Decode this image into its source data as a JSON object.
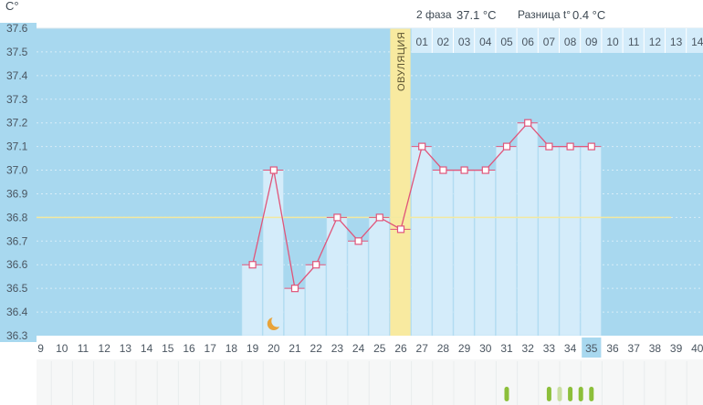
{
  "chart_data": {
    "type": "line",
    "ylabel": "C°",
    "ylim": [
      36.3,
      37.6
    ],
    "y_ticks": [
      "36.3",
      "36.4",
      "36.5",
      "36.6",
      "36.7",
      "36.8",
      "36.9",
      "37.0",
      "37.1",
      "37.2",
      "37.3",
      "37.4",
      "37.5",
      "37.6"
    ],
    "x_days": [
      "9",
      "10",
      "11",
      "12",
      "13",
      "14",
      "15",
      "16",
      "17",
      "18",
      "19",
      "20",
      "21",
      "22",
      "23",
      "24",
      "25",
      "26",
      "27",
      "28",
      "29",
      "30",
      "31",
      "32",
      "33",
      "34",
      "35",
      "36",
      "37",
      "38",
      "39",
      "40"
    ],
    "phase2_days": [
      "01",
      "02",
      "03",
      "04",
      "05",
      "06",
      "07",
      "08",
      "09",
      "10",
      "11",
      "12",
      "13",
      "14"
    ],
    "coverline": 36.8,
    "ovulation_day": 26,
    "ovulation_label": "ОВУЛЯЦИЯ",
    "current_day": 35,
    "moon_day": 20,
    "series": [
      {
        "x": [
          19,
          20,
          21,
          22,
          23,
          24,
          25,
          26,
          27,
          28,
          29,
          30,
          31,
          32,
          33,
          34,
          35
        ],
        "y": [
          36.6,
          37.0,
          36.5,
          36.6,
          36.8,
          36.7,
          36.8,
          36.75,
          37.1,
          37.0,
          37.0,
          37.0,
          37.1,
          37.2,
          37.1,
          37.1,
          37.1
        ]
      }
    ],
    "marks": [
      {
        "day": 31,
        "color": "#8cbf3a"
      },
      {
        "day": 33,
        "color": "#8cbf3a"
      },
      {
        "day": 33.5,
        "color": "#c9dfa0"
      },
      {
        "day": 34,
        "color": "#8cbf3a"
      },
      {
        "day": 34.5,
        "color": "#8cbf3a"
      },
      {
        "day": 35,
        "color": "#8cbf3a"
      }
    ],
    "info": {
      "phase_label": "2 фаза",
      "phase_temp": "37.1 °C",
      "diff_label": "Разница t°",
      "diff_value": "0.4 °C"
    },
    "colors": {
      "background": "#a8d8ef",
      "bar": "#d4ecfa",
      "line": "#e0557a",
      "coverline": "#f3e9a0",
      "ovulation": "#f8eaa0",
      "sun": "#f7d154",
      "current": "#a8d8ef"
    }
  }
}
